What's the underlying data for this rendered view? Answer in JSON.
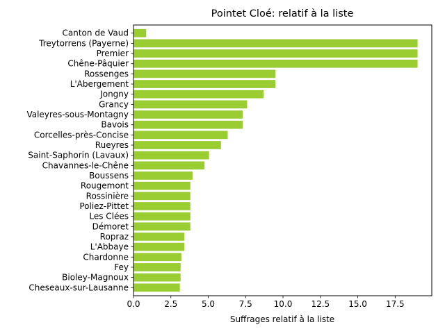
{
  "chart_data": {
    "type": "bar",
    "orientation": "horizontal",
    "title": "Pointet Cloé: relatif à la liste",
    "xlabel": "Suffrages relatif à la liste",
    "ylabel": "",
    "xlim": [
      0,
      19.95
    ],
    "xticks": [
      0,
      2.5,
      5,
      7.5,
      10,
      12.5,
      15,
      17.5
    ],
    "xtick_labels": [
      "0.0",
      "2.5",
      "5.0",
      "7.5",
      "10.0",
      "12.5",
      "15.0",
      "17.5"
    ],
    "grid": false,
    "bar_color": "#9acd32",
    "categories": [
      "Canton de Vaud",
      "Treytorrens (Payerne)",
      "Premier",
      "Chêne-Pâquier",
      "Rossenges",
      "L'Abergement",
      "Jongny",
      "Grancy",
      "Valeyres-sous-Montagny",
      "Bavois",
      "Corcelles-près-Concise",
      "Rueyres",
      "Saint-Saphorin (Lavaux)",
      "Chavannes-le-Chêne",
      "Boussens",
      "Rougemont",
      "Rossinière",
      "Poliez-Pittet",
      "Les Clées",
      "Démoret",
      "Ropraz",
      "L'Abbaye",
      "Chardonne",
      "Fey",
      "Bioley-Magnoux",
      "Cheseaux-sur-Lausanne"
    ],
    "values": [
      0.85,
      19.0,
      19.0,
      19.0,
      9.5,
      9.5,
      8.7,
      7.6,
      7.3,
      7.3,
      6.3,
      5.85,
      5.05,
      4.75,
      3.95,
      3.8,
      3.8,
      3.8,
      3.8,
      3.8,
      3.4,
      3.4,
      3.2,
      3.15,
      3.15,
      3.1
    ]
  }
}
